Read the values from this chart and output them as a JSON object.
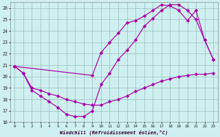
{
  "xlabel": "Windchill (Refroidissement éolien,°C)",
  "bg_color": "#cff0f0",
  "grid_color": "#99bbbb",
  "line_color": "#aa00aa",
  "xlim": [
    -0.5,
    23.5
  ],
  "ylim": [
    16,
    26.5
  ],
  "yticks": [
    16,
    17,
    18,
    19,
    20,
    21,
    22,
    23,
    24,
    25,
    26
  ],
  "xticks": [
    0,
    1,
    2,
    3,
    4,
    5,
    6,
    7,
    8,
    9,
    10,
    11,
    12,
    13,
    14,
    15,
    16,
    17,
    18,
    19,
    20,
    21,
    22,
    23
  ],
  "line1_x": [
    0,
    1,
    2,
    3,
    4,
    5,
    6,
    7,
    8,
    9,
    10,
    11,
    12,
    13,
    14,
    15,
    16,
    17,
    18,
    19,
    20,
    21,
    22,
    23
  ],
  "line1_y": [
    20.9,
    20.3,
    19.0,
    18.8,
    18.5,
    18.3,
    18.0,
    17.8,
    17.6,
    17.5,
    17.5,
    17.8,
    18.0,
    18.3,
    18.7,
    19.0,
    19.3,
    19.6,
    19.8,
    20.0,
    20.1,
    20.2,
    20.2,
    20.3
  ],
  "line2_x": [
    0,
    1,
    2,
    3,
    4,
    5,
    6,
    7,
    8,
    9,
    10,
    11,
    12,
    13,
    14,
    15,
    16,
    17,
    18,
    19,
    20,
    21,
    22,
    23
  ],
  "line2_y": [
    20.9,
    20.3,
    18.8,
    18.3,
    17.8,
    17.3,
    16.7,
    16.5,
    16.5,
    17.0,
    19.3,
    20.3,
    21.5,
    22.3,
    23.2,
    24.4,
    25.1,
    25.8,
    26.3,
    26.3,
    25.8,
    25.0,
    23.2,
    21.5
  ],
  "line3_x": [
    0,
    9,
    10,
    11,
    12,
    13,
    14,
    15,
    16,
    17,
    18,
    19,
    20,
    21,
    22,
    23
  ],
  "line3_y": [
    20.9,
    20.1,
    22.1,
    23.0,
    23.8,
    24.7,
    24.9,
    25.3,
    25.8,
    26.3,
    26.2,
    25.8,
    24.9,
    25.8,
    23.2,
    21.5
  ]
}
